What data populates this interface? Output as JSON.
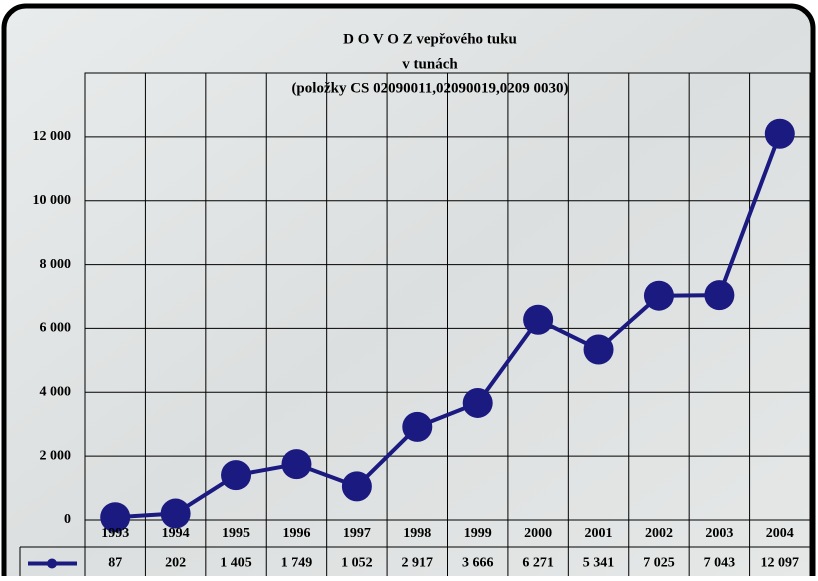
{
  "chart_data": {
    "type": "line",
    "title": "D O V O Z vepřového tuku",
    "subtitle": "v tunách",
    "note": "(položky CS 02090011,02090019,0209 0030)",
    "categories": [
      "1993",
      "1994",
      "1995",
      "1996",
      "1997",
      "1998",
      "1999",
      "2000",
      "2001",
      "2002",
      "2003",
      "2004"
    ],
    "values": [
      87,
      202,
      1405,
      1749,
      1052,
      2917,
      3666,
      6271,
      5341,
      7025,
      7043,
      12097
    ],
    "value_labels": [
      "87",
      "202",
      "1 405",
      "1 749",
      "1 052",
      "2 917",
      "3 666",
      "6 271",
      "5 341",
      "7 025",
      "7 043",
      "12 097"
    ],
    "color": "#1a1a80",
    "ylim": [
      0,
      14000
    ],
    "yticks": [
      0,
      {
        "value": 2000,
        "label": "2 000"
      },
      {
        "value": 4000,
        "label": "4 000"
      },
      {
        "value": 6000,
        "label": "6 000"
      },
      {
        "value": 8000,
        "label": "8 000"
      },
      {
        "value": 10000,
        "label": "10 000"
      },
      {
        "value": 12000,
        "label": "12 000"
      }
    ],
    "grid": true
  }
}
